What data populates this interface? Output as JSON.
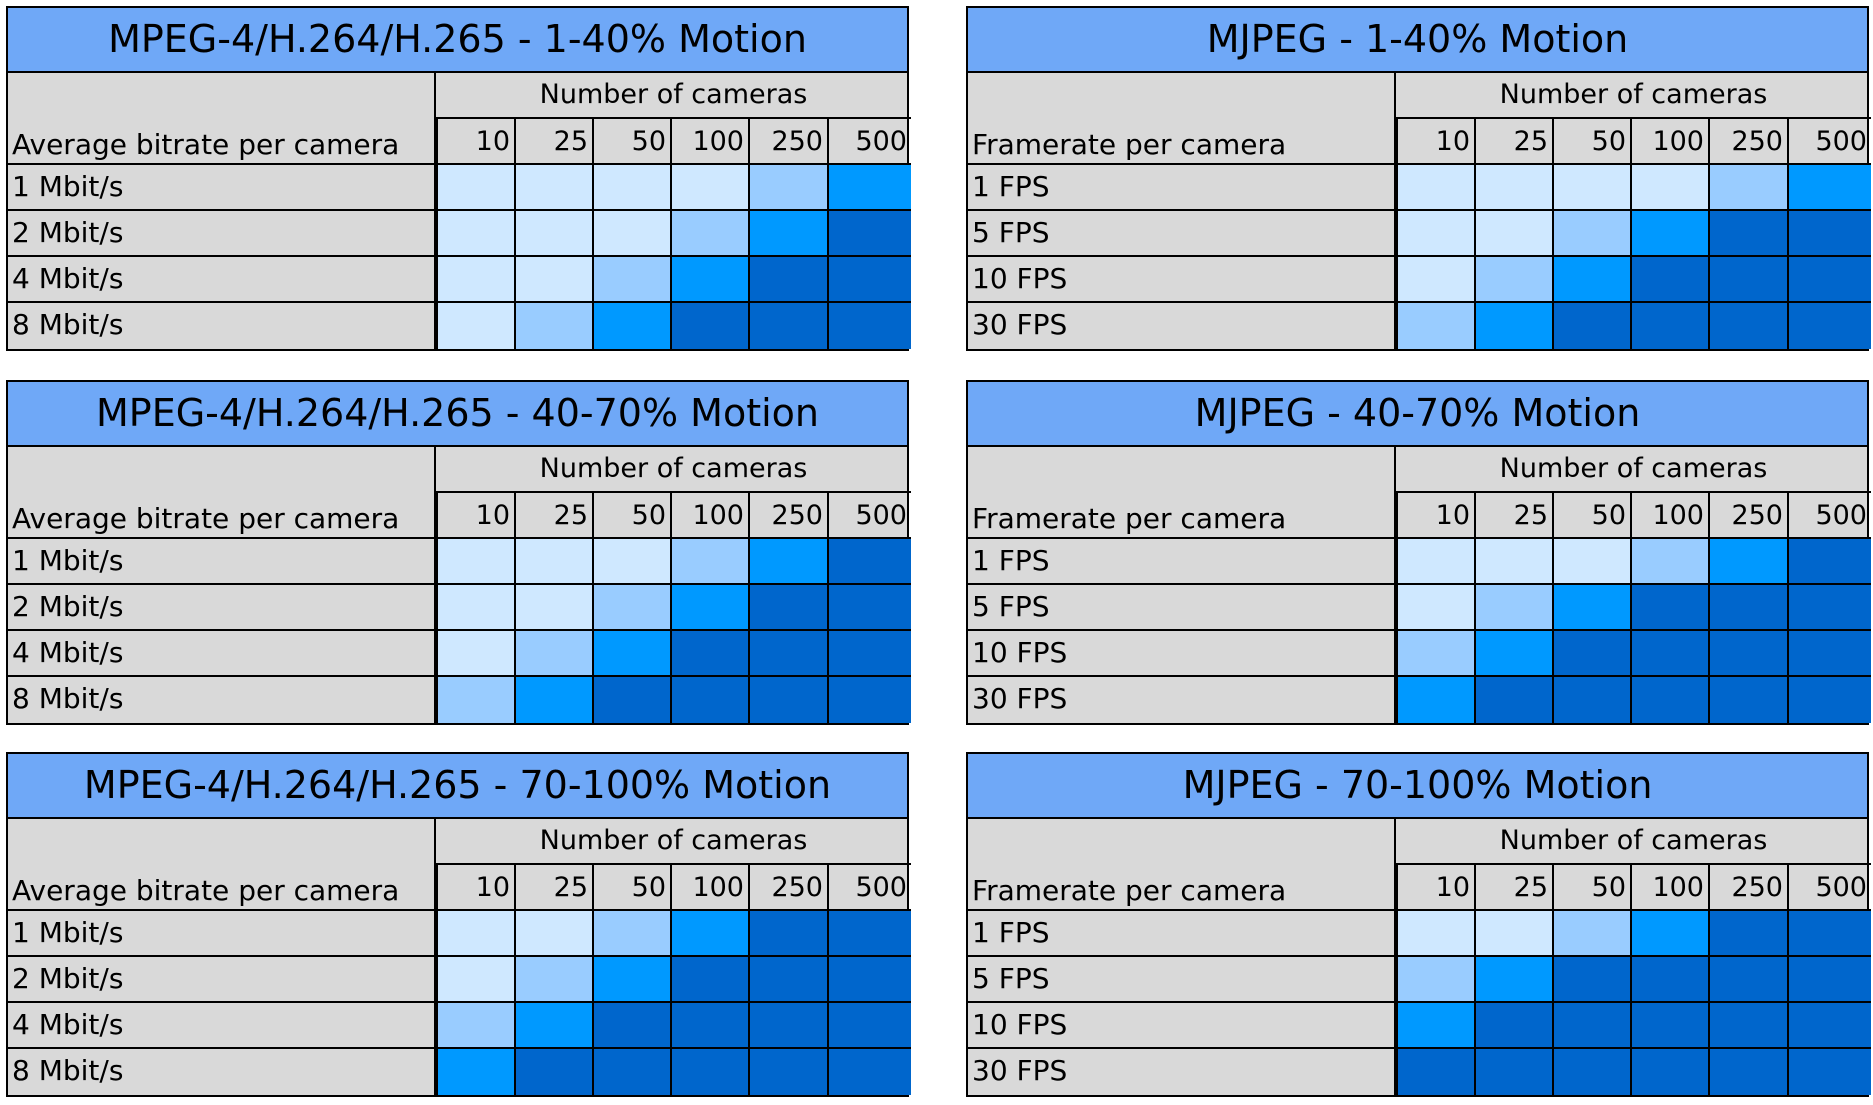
{
  "chart_data": {
    "type": "heatmap",
    "colors": {
      "1": "#cfe8ff",
      "2": "#99ccff",
      "3": "#0099ff",
      "4": "#0066cc"
    },
    "panels": [
      {
        "title": "MPEG-4/H.264/H.265 - 1-40% Motion",
        "row_header": "Average bitrate per camera",
        "col_group": "Number of cameras",
        "columns": [
          "10",
          "25",
          "50",
          "100",
          "250",
          "500"
        ],
        "rows": [
          "1 Mbit/s",
          "2 Mbit/s",
          "4 Mbit/s",
          "8 Mbit/s"
        ],
        "levels": [
          [
            1,
            1,
            1,
            1,
            2,
            3
          ],
          [
            1,
            1,
            1,
            2,
            3,
            4
          ],
          [
            1,
            1,
            2,
            3,
            4,
            4
          ],
          [
            1,
            2,
            3,
            4,
            4,
            4
          ]
        ]
      },
      {
        "title": "MJPEG - 1-40% Motion",
        "row_header": "Framerate per camera",
        "col_group": "Number of cameras",
        "columns": [
          "10",
          "25",
          "50",
          "100",
          "250",
          "500"
        ],
        "rows": [
          "1 FPS",
          "5 FPS",
          "10 FPS",
          "30 FPS"
        ],
        "levels": [
          [
            1,
            1,
            1,
            1,
            2,
            3
          ],
          [
            1,
            1,
            2,
            3,
            4,
            4
          ],
          [
            1,
            2,
            3,
            4,
            4,
            4
          ],
          [
            2,
            3,
            4,
            4,
            4,
            4
          ]
        ]
      },
      {
        "title": "MPEG-4/H.264/H.265 - 40-70% Motion",
        "row_header": "Average bitrate per camera",
        "col_group": "Number of cameras",
        "columns": [
          "10",
          "25",
          "50",
          "100",
          "250",
          "500"
        ],
        "rows": [
          "1 Mbit/s",
          "2 Mbit/s",
          "4 Mbit/s",
          "8 Mbit/s"
        ],
        "levels": [
          [
            1,
            1,
            1,
            2,
            3,
            4
          ],
          [
            1,
            1,
            2,
            3,
            4,
            4
          ],
          [
            1,
            2,
            3,
            4,
            4,
            4
          ],
          [
            2,
            3,
            4,
            4,
            4,
            4
          ]
        ]
      },
      {
        "title": "MJPEG - 40-70% Motion",
        "row_header": "Framerate per camera",
        "col_group": "Number of cameras",
        "columns": [
          "10",
          "25",
          "50",
          "100",
          "250",
          "500"
        ],
        "rows": [
          "1 FPS",
          "5 FPS",
          "10 FPS",
          "30 FPS"
        ],
        "levels": [
          [
            1,
            1,
            1,
            2,
            3,
            4
          ],
          [
            1,
            2,
            3,
            4,
            4,
            4
          ],
          [
            2,
            3,
            4,
            4,
            4,
            4
          ],
          [
            3,
            4,
            4,
            4,
            4,
            4
          ]
        ]
      },
      {
        "title": "MPEG-4/H.264/H.265 - 70-100% Motion",
        "row_header": "Average bitrate per camera",
        "col_group": "Number of cameras",
        "columns": [
          "10",
          "25",
          "50",
          "100",
          "250",
          "500"
        ],
        "rows": [
          "1 Mbit/s",
          "2 Mbit/s",
          "4 Mbit/s",
          "8 Mbit/s"
        ],
        "levels": [
          [
            1,
            1,
            2,
            3,
            4,
            4
          ],
          [
            1,
            2,
            3,
            4,
            4,
            4
          ],
          [
            2,
            3,
            4,
            4,
            4,
            4
          ],
          [
            3,
            4,
            4,
            4,
            4,
            4
          ]
        ]
      },
      {
        "title": "MJPEG - 70-100% Motion",
        "row_header": "Framerate per camera",
        "col_group": "Number of cameras",
        "columns": [
          "10",
          "25",
          "50",
          "100",
          "250",
          "500"
        ],
        "rows": [
          "1 FPS",
          "5 FPS",
          "10 FPS",
          "30 FPS"
        ],
        "levels": [
          [
            1,
            1,
            2,
            3,
            4,
            4
          ],
          [
            2,
            3,
            4,
            4,
            4,
            4
          ],
          [
            3,
            4,
            4,
            4,
            4,
            4
          ],
          [
            4,
            4,
            4,
            4,
            4,
            4
          ]
        ]
      }
    ]
  }
}
